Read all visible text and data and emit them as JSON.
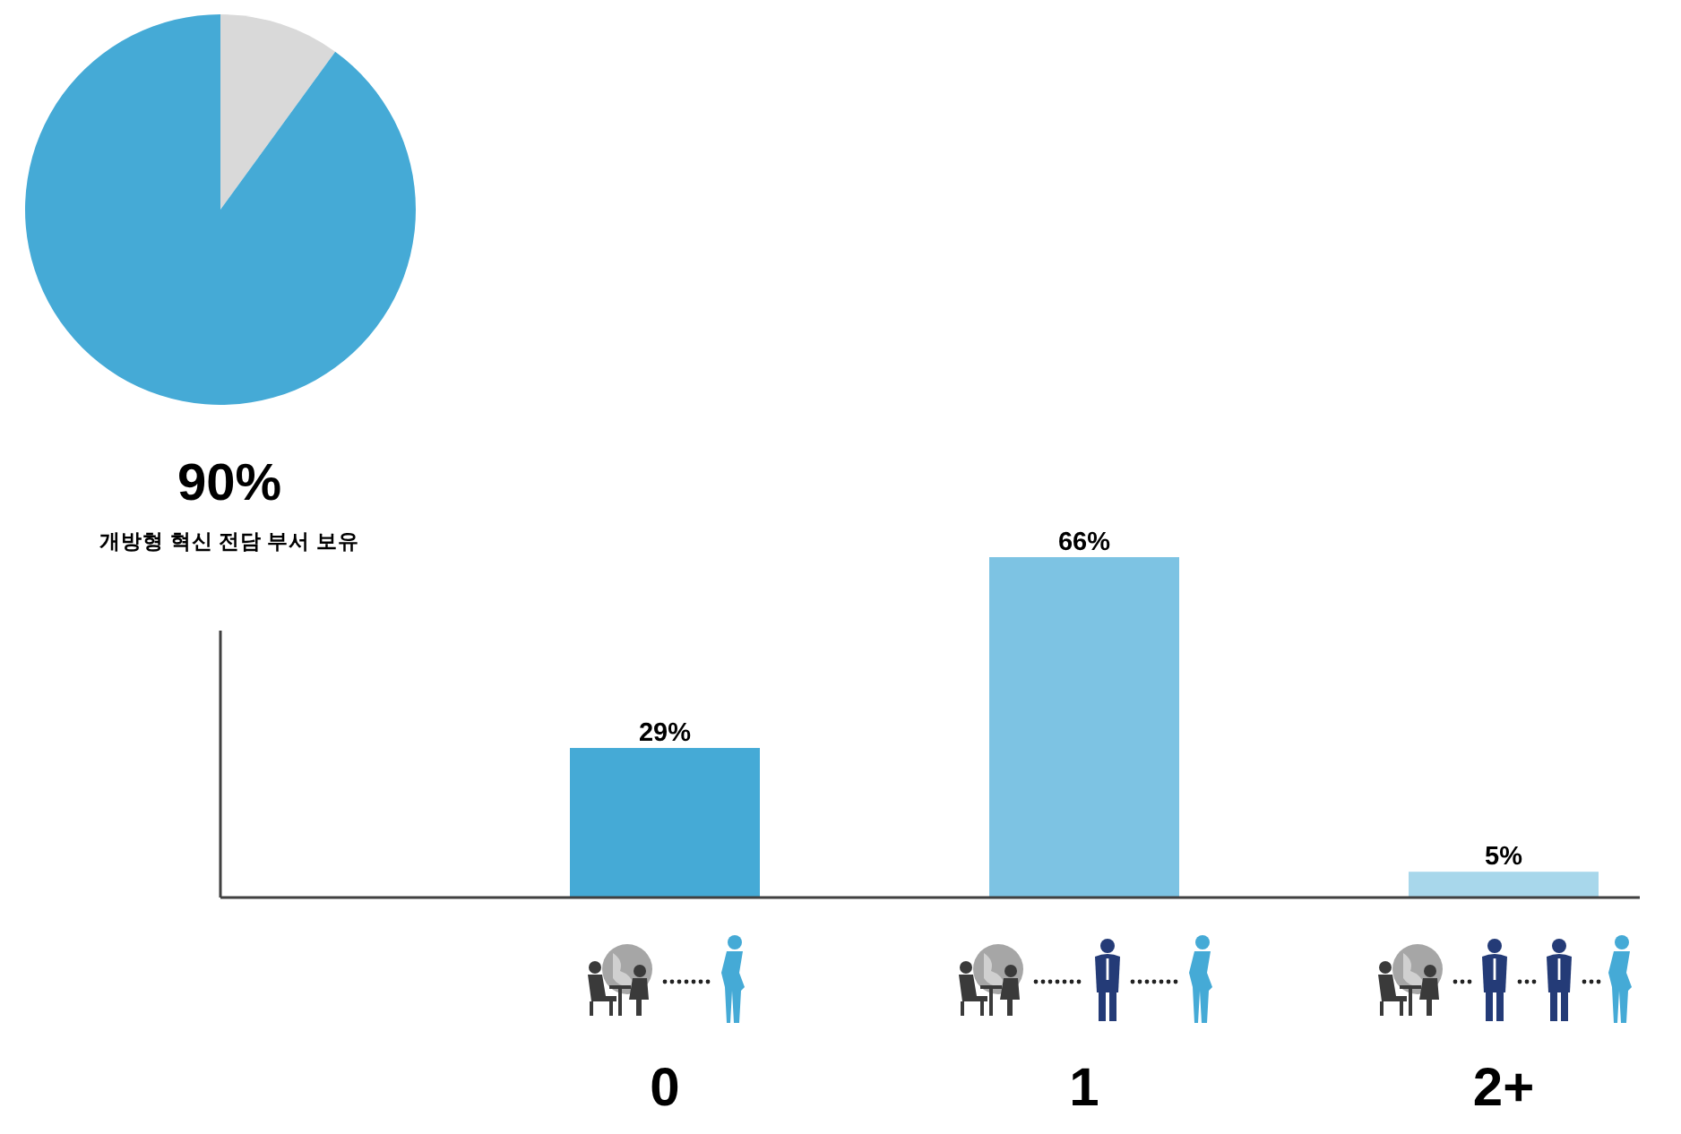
{
  "chart_data": [
    {
      "type": "pie",
      "categories": [
        null,
        "개방형 혁신 전담 부서 보유"
      ],
      "values": [
        10,
        90
      ],
      "colors": [
        "#d9d9d9",
        "#45aad6"
      ],
      "value_labels": [
        null,
        "90%"
      ]
    },
    {
      "type": "bar",
      "categories": [
        "0",
        "1",
        "2+"
      ],
      "values": [
        29,
        66,
        5
      ],
      "colors": [
        "#45aad6",
        "#7dc3e3",
        "#a8d7eb"
      ],
      "value_labels": [
        "29%",
        "66%",
        "5%"
      ],
      "tick_labels": "x"
    }
  ]
}
